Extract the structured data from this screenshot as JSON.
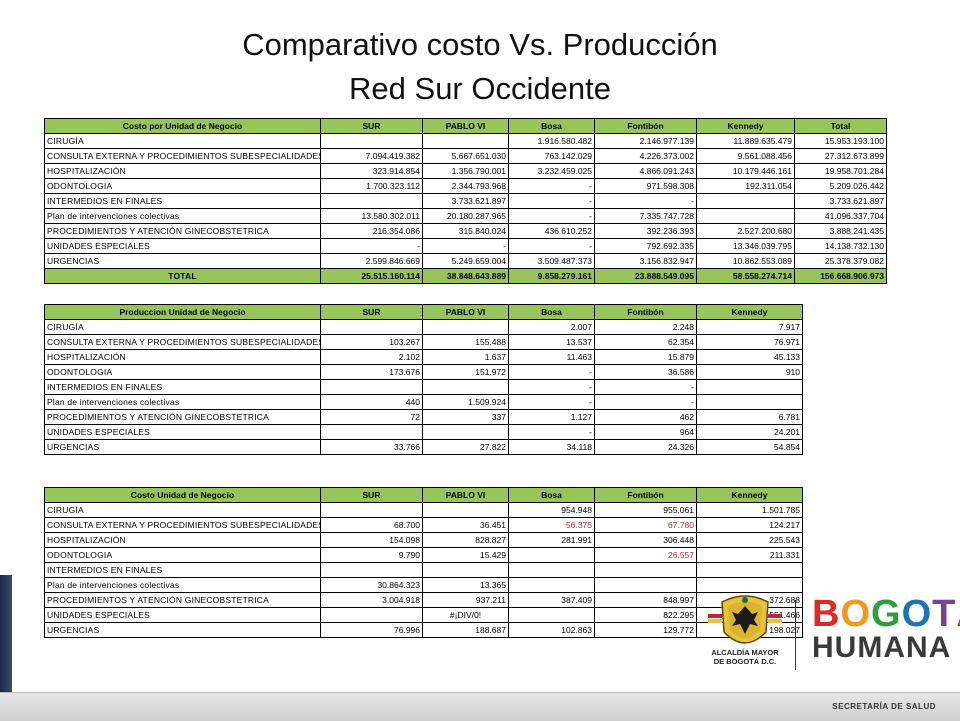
{
  "title_line1": "Comparativo costo Vs. Producción",
  "title_line2": "Red Sur Occidente",
  "table1": {
    "headers": [
      "Costo por Unidad de Negocio",
      "SUR",
      "PABLO VI",
      "Bosa",
      "Fontibón",
      "Kennedy",
      "Total"
    ],
    "rows": [
      [
        "CIRUGÍA",
        "",
        "",
        "1.916.580.482",
        "2.146.977.139",
        "11.889.635.479",
        "15.953.193.100"
      ],
      [
        "CONSULTA EXTERNA Y PROCEDIMIENTOS SUBESPECIALIDADES",
        "7.094.419.382",
        "5.667.651.030",
        "763.142.029",
        "4.226.373.002",
        "9.561.088.456",
        "27.312.673.899"
      ],
      [
        "HOSPITALIZACIÓN",
        "323.914.854",
        "1.356.790.001",
        "3.232.459.025",
        "4.866.091.243",
        "10.179.446.161",
        "19.958.701.284"
      ],
      [
        "ODONTOLOGIA",
        "1.700.323.112",
        "2.344.793.968",
        "-",
        "971.598.308",
        "192.311.054",
        "5.209.026.442"
      ],
      [
        "INTERMEDIOS EN FINALES",
        "",
        "3.733.621.897",
        "-",
        "-",
        "",
        "3.733.621.897"
      ],
      [
        "Plan de intervenciones colectivas",
        "13.580.302.011",
        "20.180.287.965",
        "-",
        "7.335.747.728",
        "",
        "41.096.337.704"
      ],
      [
        "PROCEDIMIENTOS Y ATENCIÓN GINECOBSTETRICA",
        "216.354.086",
        "315.840.024",
        "436.610.252",
        "392.236.393",
        "2.527.200.680",
        "3.888.241.435"
      ],
      [
        "UNIDADES ESPECIALES",
        "-",
        "-",
        "-",
        "792.692.335",
        "13.346.039.795",
        "14.138.732.130"
      ],
      [
        "URGENCIAS",
        "2.599.846.669",
        "5.249.659.004",
        "3.509.487.373",
        "3.156.832.947",
        "10.862.553.089",
        "25.378.379.082"
      ]
    ],
    "total": [
      "TOTAL",
      "25.515.160.114",
      "38.848.643.889",
      "9.858.279.161",
      "23.888.549.095",
      "58.558.274.714",
      "156.668.906.973"
    ]
  },
  "table2": {
    "headers": [
      "Produccion Unidad de Negocio",
      "SUR",
      "PABLO VI",
      "Bosa",
      "Fontibón",
      "Kennedy"
    ],
    "rows": [
      [
        "CIRUGÍA",
        "",
        "",
        "2.007",
        "2.248",
        "7.917"
      ],
      [
        "CONSULTA EXTERNA Y PROCEDIMIENTOS SUBESPECIALIDADES",
        "103.267",
        "155.488",
        "13.537",
        "62.354",
        "76.971"
      ],
      [
        "HOSPITALIZACIÓN",
        "2.102",
        "1.637",
        "11.463",
        "15.879",
        "45.133"
      ],
      [
        "ODONTOLOGIA",
        "173.676",
        "151.972",
        "-",
        "36.586",
        "910"
      ],
      [
        "INTERMEDIOS EN FINALES",
        "",
        "",
        "-",
        "-",
        ""
      ],
      [
        "Plan de intervenciones colectivas",
        "440",
        "1.509.924",
        "-",
        "-",
        ""
      ],
      [
        "PROCEDIMIENTOS Y ATENCIÓN GINECOBSTETRICA",
        "72",
        "337",
        "1.127",
        "462",
        "6.781"
      ],
      [
        "UNIDADES ESPECIALES",
        "",
        "",
        "-",
        "964",
        "24.201"
      ],
      [
        "URGENCIAS",
        "33.766",
        "27.822",
        "34.118",
        "24.326",
        "54.854"
      ]
    ]
  },
  "table3": {
    "headers": [
      "Costo Unidad de Negocio",
      "SUR",
      "PABLO VI",
      "Bosa",
      "Fontibón",
      "Kennedy"
    ],
    "rows": [
      [
        "CIRUGÍA",
        "",
        "",
        "954.948",
        "955.061",
        "1.501.785"
      ],
      [
        "CONSULTA EXTERNA Y PROCEDIMIENTOS SUBESPECIALIDADES",
        "68.700",
        "36.451",
        "56.375",
        "67.780",
        "124.217"
      ],
      [
        "HOSPITALIZACIÓN",
        "154.098",
        "828.827",
        "281.991",
        "306.448",
        "225.543"
      ],
      [
        "ODONTOLOGIA",
        "9.790",
        "15.429",
        "",
        "26.557",
        "211.331"
      ],
      [
        "INTERMEDIOS EN FINALES",
        "",
        "",
        "",
        "",
        ""
      ],
      [
        "Plan de intervenciones colectivas",
        "30.864.323",
        "13.365",
        "",
        "",
        ""
      ],
      [
        "PROCEDIMIENTOS Y ATENCIÓN GINECOBSTETRICA",
        "3.004.918",
        "937.211",
        "387.409",
        "848.997",
        "372.688"
      ],
      [
        "UNIDADES ESPECIALES",
        "",
        "#¡DIV/0!",
        "",
        "822.295",
        "551.466"
      ],
      [
        "URGENCIAS",
        "76.996",
        "188.687",
        "102.863",
        "129.772",
        "198.027"
      ]
    ],
    "red_cells": [
      [
        1,
        3
      ],
      [
        1,
        4
      ],
      [
        3,
        4
      ]
    ]
  },
  "logo": {
    "alcaldia_line1": "ALCALDÍA MAYOR",
    "alcaldia_line2": "DE BOGOTÁ D.C.",
    "bogota_letters": [
      "B",
      "O",
      "G",
      "O",
      "T",
      "Á"
    ],
    "bogota_colors": [
      "#e32626",
      "#f39a1b",
      "#2e9e3e",
      "#1f72b8",
      "#7a3f98",
      "#e32626"
    ],
    "humana": "HUMANA",
    "footer": "SECRETARÍA DE SALUD"
  }
}
